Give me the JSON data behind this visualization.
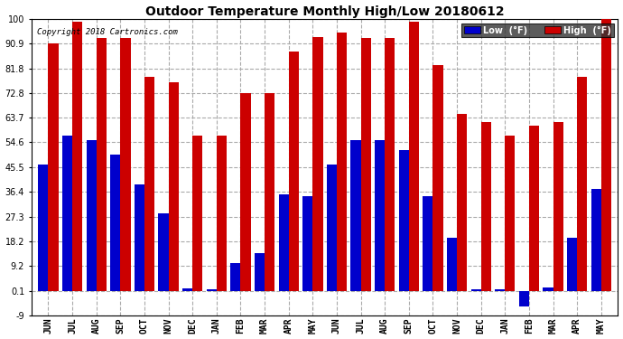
{
  "title": "Outdoor Temperature Monthly High/Low 20180612",
  "copyright": "Copyright 2018 Cartronics.com",
  "legend_low": "Low  (°F)",
  "legend_high": "High  (°F)",
  "low_color": "#0000cc",
  "high_color": "#cc0000",
  "background_color": "#ffffff",
  "ylim": [
    -9.0,
    100.0
  ],
  "yticks": [
    -9.0,
    0.1,
    9.2,
    18.2,
    27.3,
    36.4,
    45.5,
    54.6,
    63.7,
    72.8,
    81.8,
    90.9,
    100.0
  ],
  "categories": [
    "JUN",
    "JUL",
    "AUG",
    "SEP",
    "OCT",
    "NOV",
    "DEC",
    "JAN",
    "FEB",
    "MAR",
    "APR",
    "MAY",
    "JUN",
    "JUL",
    "AUG",
    "SEP",
    "OCT",
    "NOV",
    "DEC",
    "JAN",
    "FEB",
    "MAR",
    "APR",
    "MAY"
  ],
  "high_values": [
    90.9,
    99.0,
    93.0,
    93.0,
    78.8,
    76.8,
    57.2,
    57.2,
    72.8,
    72.8,
    87.8,
    93.2,
    95.0,
    93.0,
    93.0,
    99.0,
    83.0,
    65.0,
    62.0,
    57.2,
    60.8,
    62.0,
    78.8,
    100.0
  ],
  "low_values": [
    46.4,
    57.2,
    55.4,
    50.0,
    39.2,
    28.4,
    1.0,
    0.5,
    10.4,
    14.0,
    35.6,
    35.0,
    46.4,
    55.4,
    55.4,
    51.8,
    35.0,
    19.4,
    0.5,
    0.5,
    -5.8,
    1.4,
    19.4,
    37.4
  ],
  "bar_width": 0.42,
  "figsize": [
    6.9,
    3.75
  ],
  "dpi": 100
}
